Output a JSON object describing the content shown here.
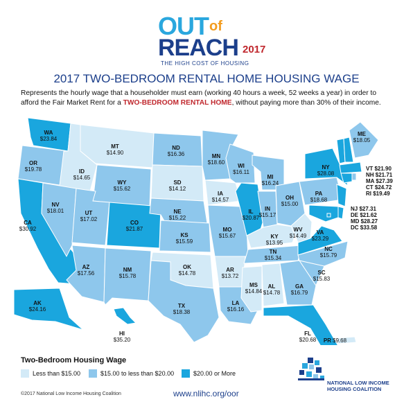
{
  "logo": {
    "out": "OUT",
    "of": "of",
    "reach": "REACH",
    "year": "2017",
    "subtitle": "THE HIGH COST OF HOUSING"
  },
  "title": "2017 TWO-BEDROOM RENTAL HOME HOUSING WAGE",
  "description": {
    "before": "Represents the hourly wage that a householder must earn (working 40 hours a week, 52 weeks a year) in order to afford the Fair Market Rent for a ",
    "highlight": "TWO-BEDROOM RENTAL HOME",
    "after": ", without paying more than 30% of their income."
  },
  "colors": {
    "low": "#d3eaf7",
    "mid": "#8ec7ec",
    "high": "#1aa6de",
    "border": "#ffffff"
  },
  "states": [
    {
      "code": "WA",
      "wage": "$23.84"
    },
    {
      "code": "OR",
      "wage": "$19.78"
    },
    {
      "code": "CA",
      "wage": "$30.92"
    },
    {
      "code": "ID",
      "wage": "$14.65"
    },
    {
      "code": "NV",
      "wage": "$18.01"
    },
    {
      "code": "MT",
      "wage": "$14.90"
    },
    {
      "code": "WY",
      "wage": "$15.62"
    },
    {
      "code": "UT",
      "wage": "$17.02"
    },
    {
      "code": "AZ",
      "wage": "$17.56"
    },
    {
      "code": "CO",
      "wage": "$21.87"
    },
    {
      "code": "NM",
      "wage": "$15.78"
    },
    {
      "code": "ND",
      "wage": "$16.36"
    },
    {
      "code": "SD",
      "wage": "$14.12"
    },
    {
      "code": "NE",
      "wage": "$15.22"
    },
    {
      "code": "KS",
      "wage": "$15.59"
    },
    {
      "code": "OK",
      "wage": "$14.78"
    },
    {
      "code": "TX",
      "wage": "$18.38"
    },
    {
      "code": "MN",
      "wage": "$18.60"
    },
    {
      "code": "IA",
      "wage": "$14.57"
    },
    {
      "code": "MO",
      "wage": "$15.67"
    },
    {
      "code": "AR",
      "wage": "$13.72"
    },
    {
      "code": "LA",
      "wage": "$16.16"
    },
    {
      "code": "WI",
      "wage": "$16.11"
    },
    {
      "code": "IL",
      "wage": "$20.87"
    },
    {
      "code": "MS",
      "wage": "$14.84"
    },
    {
      "code": "MI",
      "wage": "$16.24"
    },
    {
      "code": "IN",
      "wage": "$15.17"
    },
    {
      "code": "KY",
      "wage": "$13.95"
    },
    {
      "code": "TN",
      "wage": "$15.34"
    },
    {
      "code": "AL",
      "wage": "$14.78"
    },
    {
      "code": "OH",
      "wage": "$15.00"
    },
    {
      "code": "WV",
      "wage": "$14.49"
    },
    {
      "code": "GA",
      "wage": "$16.79"
    },
    {
      "code": "FL",
      "wage": "$20.68"
    },
    {
      "code": "SC",
      "wage": "$15.83"
    },
    {
      "code": "NC",
      "wage": "$15.79"
    },
    {
      "code": "VA",
      "wage": "$23.29"
    },
    {
      "code": "PA",
      "wage": "$18.68"
    },
    {
      "code": "NY",
      "wage": "$28.08"
    },
    {
      "code": "ME",
      "wage": "$18.05"
    },
    {
      "code": "AK",
      "wage": "$24.16"
    },
    {
      "code": "HI",
      "wage": "$35.20"
    },
    {
      "code": "PR",
      "wage": "$9.68"
    }
  ],
  "northeast_list": [
    {
      "code": "VT",
      "wage": "$21.90"
    },
    {
      "code": "NH",
      "wage": "$21.71"
    },
    {
      "code": "MA",
      "wage": "$27.39"
    },
    {
      "code": "CT",
      "wage": "$24.72"
    },
    {
      "code": "RI",
      "wage": "$19.49"
    }
  ],
  "mid_atlantic_list": [
    {
      "code": "NJ",
      "wage": "$27.31"
    },
    {
      "code": "DE",
      "wage": "$21.62"
    },
    {
      "code": "MD",
      "wage": "$28.27"
    },
    {
      "code": "DC",
      "wage": "$33.58"
    }
  ],
  "legend": {
    "title": "Two-Bedroom Housing Wage",
    "items": [
      {
        "label": "Less than $15.00"
      },
      {
        "label": "$15.00 to less than $20.00"
      },
      {
        "label": "$20.00 or More"
      }
    ]
  },
  "footer": {
    "copyright": "©2017 National Low Income Housing Coalition",
    "url": "www.nlihc.org/oor",
    "org_line1": "NATIONAL LOW INCOME",
    "org_line2": "HOUSING COALITION"
  }
}
